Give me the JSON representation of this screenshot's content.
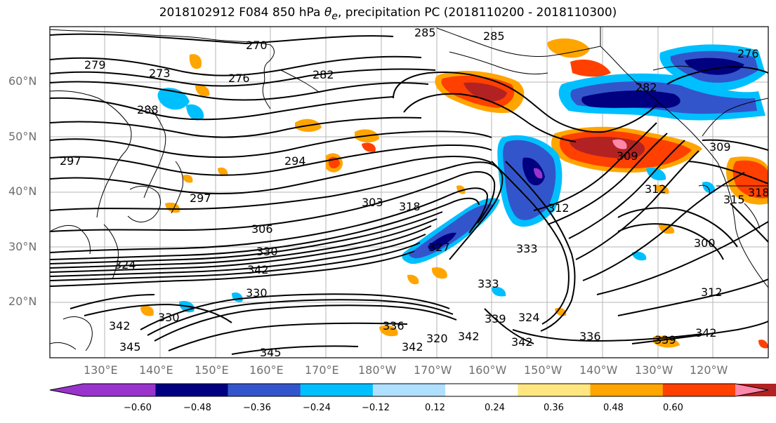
{
  "title": "2018102912 F084 850 hPa θe, precipitation PC (2018110200 - 2018110300)",
  "lat_labels": [
    {
      "label": "60°N",
      "lat": 60
    },
    {
      "label": "50°N",
      "lat": 50
    },
    {
      "label": "40°N",
      "lat": 40
    },
    {
      "label": "30°N",
      "lat": 30
    },
    {
      "label": "20°N",
      "lat": 20
    }
  ],
  "lon_labels": [
    {
      "label": "130°E",
      "lon": 130
    },
    {
      "label": "140°E",
      "lon": 140
    },
    {
      "label": "150°E",
      "lon": 150
    },
    {
      "label": "160°E",
      "lon": 160
    },
    {
      "label": "170°E",
      "lon": 170
    },
    {
      "label": "180°W",
      "lon": 180
    },
    {
      "label": "170°W",
      "lon": 190
    },
    {
      "label": "160°W",
      "lon": 200
    },
    {
      "label": "150°W",
      "lon": 210
    },
    {
      "label": "140°W",
      "lon": 220
    },
    {
      "label": "130°W",
      "lon": 230
    },
    {
      "label": "120°W",
      "lon": 240
    }
  ],
  "contour_labels": [
    "270",
    "285",
    "285",
    "279",
    "273",
    "276",
    "282",
    "282",
    "288",
    "276",
    "297",
    "294",
    "297",
    "303",
    "318",
    "306",
    "330",
    "342",
    "324",
    "330",
    "342",
    "330",
    "336",
    "345",
    "345",
    "342",
    "320",
    "342",
    "339",
    "324",
    "342",
    "336",
    "333",
    "339",
    "342",
    "312",
    "300",
    "312",
    "315",
    "309",
    "312",
    "333",
    "327",
    "318",
    "309"
  ],
  "colorbar": {
    "ticks": [
      "−0.60",
      "−0.48",
      "−0.36",
      "−0.24",
      "−0.12",
      "0.12",
      "0.24",
      "0.36",
      "0.48",
      "0.60"
    ],
    "colors": [
      "#9933cc",
      "#000080",
      "#3355cc",
      "#00bfff",
      "#b0e0ff",
      "#ffffff",
      "#ffe680",
      "#ffa500",
      "#ff4000",
      "#b22222",
      "#ff88aa"
    ]
  }
}
